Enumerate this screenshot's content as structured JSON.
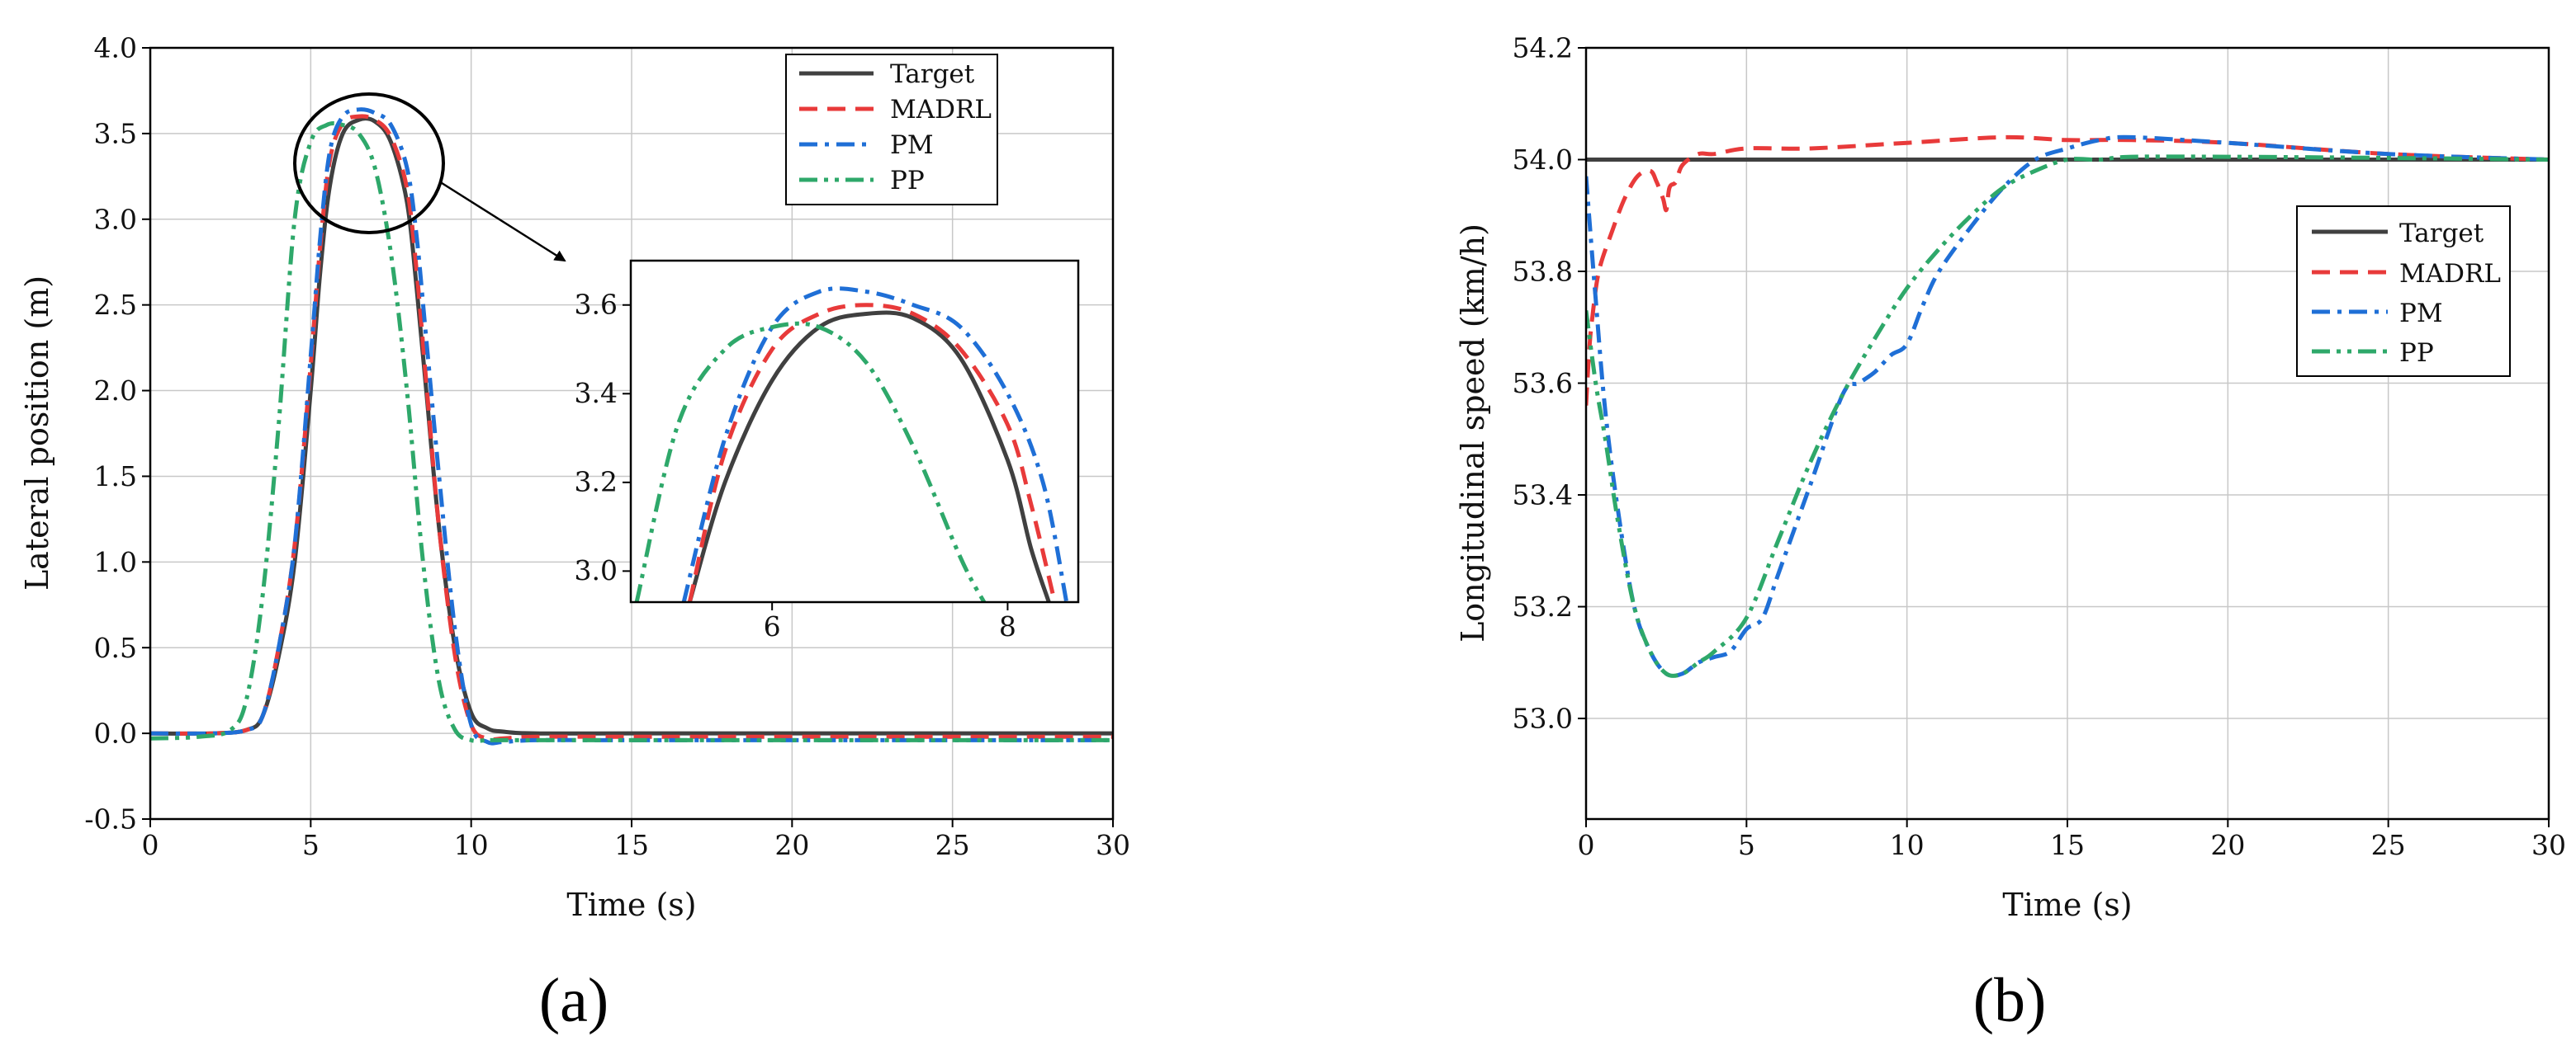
{
  "chart_data": [
    {
      "type": "line",
      "panel_label": "(a)",
      "xlabel": "Time (s)",
      "ylabel": "Lateral position (m)",
      "xlim": [
        0,
        30
      ],
      "ylim": [
        -0.5,
        4.0
      ],
      "xticks": [
        0,
        5,
        10,
        15,
        20,
        25,
        30
      ],
      "xtick_labels": [
        "0",
        "5",
        "10",
        "15",
        "20",
        "25",
        "30"
      ],
      "yticks": [
        -0.5,
        0.0,
        0.5,
        1.0,
        1.5,
        2.0,
        2.5,
        3.0,
        3.5,
        4.0
      ],
      "ytick_labels": [
        "-0.5",
        "0.0",
        "0.5",
        "1.0",
        "1.5",
        "2.0",
        "2.5",
        "3.0",
        "3.5",
        "4.0"
      ],
      "grid": true,
      "legend_position": "top-right",
      "series": [
        {
          "name": "Target",
          "color": "#404040",
          "dash": "solid",
          "x": [
            0,
            2,
            3,
            3.5,
            4,
            4.5,
            5,
            5.3,
            5.6,
            6,
            6.5,
            7,
            7.5,
            8,
            8.3,
            8.6,
            9,
            9.5,
            10,
            10.5,
            11,
            12,
            15,
            20,
            25,
            30
          ],
          "y": [
            0,
            0,
            0.02,
            0.1,
            0.45,
            1.0,
            2.0,
            2.7,
            3.2,
            3.5,
            3.58,
            3.57,
            3.45,
            3.1,
            2.6,
            2.0,
            1.2,
            0.5,
            0.12,
            0.03,
            0.01,
            0,
            0,
            0,
            0,
            0
          ]
        },
        {
          "name": "MADRL",
          "color": "#e83a3a",
          "dash": "dashed",
          "x": [
            0,
            2,
            3,
            3.5,
            4,
            4.5,
            5,
            5.3,
            5.6,
            6,
            6.5,
            7,
            7.5,
            8,
            8.3,
            8.6,
            9,
            9.5,
            10,
            10.5,
            11,
            12,
            15,
            20,
            25,
            30
          ],
          "y": [
            0,
            0,
            0.02,
            0.1,
            0.5,
            1.1,
            2.15,
            2.85,
            3.35,
            3.56,
            3.6,
            3.58,
            3.48,
            3.18,
            2.7,
            2.05,
            1.2,
            0.45,
            0.05,
            -0.03,
            -0.03,
            -0.02,
            -0.02,
            -0.02,
            -0.02,
            -0.02
          ]
        },
        {
          "name": "PM",
          "color": "#1f6fd6",
          "dash": "dashdot",
          "x": [
            0,
            2,
            3,
            3.5,
            4,
            4.5,
            5,
            5.3,
            5.6,
            6,
            6.5,
            7,
            7.5,
            8,
            8.3,
            8.6,
            9,
            9.5,
            10,
            10.5,
            11,
            12,
            15,
            20,
            25,
            30
          ],
          "y": [
            0,
            0,
            0.02,
            0.1,
            0.5,
            1.1,
            2.2,
            2.9,
            3.4,
            3.6,
            3.64,
            3.62,
            3.55,
            3.3,
            2.9,
            2.3,
            1.5,
            0.6,
            0.05,
            -0.05,
            -0.05,
            -0.04,
            -0.04,
            -0.04,
            -0.04,
            -0.04
          ]
        },
        {
          "name": "PP",
          "color": "#2ea86a",
          "dash": "dashdotdot",
          "x": [
            0,
            1.5,
            2.5,
            3,
            3.5,
            4,
            4.5,
            5,
            5.5,
            6,
            6.5,
            7,
            7.5,
            8,
            8.5,
            9,
            9.5,
            10,
            10.5,
            11,
            15,
            20,
            25,
            30
          ],
          "y": [
            -0.03,
            -0.02,
            0.02,
            0.2,
            0.8,
            1.8,
            3.0,
            3.45,
            3.55,
            3.55,
            3.5,
            3.3,
            2.8,
            2.0,
            1.0,
            0.3,
            0.02,
            -0.04,
            -0.04,
            -0.04,
            -0.04,
            -0.04,
            -0.04,
            -0.04
          ]
        }
      ],
      "inset": {
        "xlim": [
          4.8,
          8.6
        ],
        "ylim": [
          2.93,
          3.7
        ],
        "xticks": [
          6,
          8
        ],
        "xtick_labels": [
          "6",
          "8"
        ],
        "yticks": [
          3.0,
          3.2,
          3.4,
          3.6
        ],
        "ytick_labels": [
          "3.0",
          "3.2",
          "3.4",
          "3.6"
        ],
        "series": [
          {
            "name": "Target",
            "color": "#404040",
            "dash": "solid",
            "x": [
              5.3,
              5.6,
              6,
              6.4,
              6.8,
              7.2,
              7.6,
              8.0,
              8.2,
              8.35
            ],
            "y": [
              2.93,
              3.2,
              3.43,
              3.55,
              3.58,
              3.57,
              3.48,
              3.25,
              3.05,
              2.93
            ]
          },
          {
            "name": "MADRL",
            "color": "#e83a3a",
            "dash": "dashed",
            "x": [
              5.3,
              5.6,
              6,
              6.4,
              6.8,
              7.2,
              7.6,
              8.0,
              8.2,
              8.4
            ],
            "y": [
              2.93,
              3.27,
              3.5,
              3.58,
              3.6,
              3.58,
              3.5,
              3.33,
              3.15,
              2.93
            ]
          },
          {
            "name": "PM",
            "color": "#1f6fd6",
            "dash": "dashdot",
            "x": [
              5.25,
              5.6,
              6,
              6.4,
              6.8,
              7.2,
              7.6,
              8.0,
              8.3,
              8.5
            ],
            "y": [
              2.93,
              3.3,
              3.55,
              3.63,
              3.63,
              3.6,
              3.55,
              3.4,
              3.2,
              2.93
            ]
          },
          {
            "name": "PP",
            "color": "#2ea86a",
            "dash": "dashdotdot",
            "x": [
              4.85,
              5.2,
              5.6,
              6,
              6.4,
              6.8,
              7.2,
              7.6,
              7.8
            ],
            "y": [
              2.93,
              3.33,
              3.5,
              3.55,
              3.55,
              3.47,
              3.28,
              3.03,
              2.93
            ]
          }
        ]
      }
    },
    {
      "type": "line",
      "panel_label": "(b)",
      "xlabel": "Time (s)",
      "ylabel": "Longitudinal speed (km/h)",
      "xlim": [
        0,
        30
      ],
      "ylim": [
        52.82,
        54.2
      ],
      "xticks": [
        0,
        5,
        10,
        15,
        20,
        25,
        30
      ],
      "xtick_labels": [
        "0",
        "5",
        "10",
        "15",
        "20",
        "25",
        "30"
      ],
      "yticks": [
        53.0,
        53.2,
        53.4,
        53.6,
        53.8,
        54.0,
        54.2
      ],
      "ytick_labels": [
        "53.0",
        "53.2",
        "53.4",
        "53.6",
        "53.8",
        "54.0",
        "54.2"
      ],
      "grid": true,
      "legend_position": "right",
      "series": [
        {
          "name": "Target",
          "color": "#404040",
          "dash": "solid",
          "x": [
            0,
            30
          ],
          "y": [
            54.0,
            54.0
          ]
        },
        {
          "name": "MADRL",
          "color": "#e83a3a",
          "dash": "dashed",
          "x": [
            0,
            0.1,
            0.2,
            0.4,
            0.8,
            1.2,
            1.6,
            2.0,
            2.2,
            2.4,
            2.5,
            2.6,
            2.8,
            3.0,
            3.5,
            4,
            5,
            7,
            10,
            13,
            15,
            17,
            20,
            25,
            30
          ],
          "y": [
            53.56,
            53.66,
            53.72,
            53.8,
            53.87,
            53.93,
            53.97,
            53.98,
            53.96,
            53.93,
            53.91,
            53.95,
            53.96,
            53.99,
            54.01,
            54.01,
            54.02,
            54.02,
            54.03,
            54.04,
            54.035,
            54.035,
            54.03,
            54.01,
            54.0
          ]
        },
        {
          "name": "PM",
          "color": "#1f6fd6",
          "dash": "dashdot",
          "x": [
            0,
            0.3,
            0.6,
            1,
            1.5,
            2,
            2.5,
            3,
            3.5,
            4,
            4.5,
            5,
            5.5,
            6,
            7,
            8,
            8.5,
            9,
            9.5,
            10,
            10.5,
            11,
            12,
            13,
            14,
            15,
            16,
            17,
            20,
            25,
            30
          ],
          "y": [
            53.97,
            53.75,
            53.55,
            53.37,
            53.2,
            53.12,
            53.08,
            53.08,
            53.1,
            53.11,
            53.12,
            53.16,
            53.18,
            53.26,
            53.42,
            53.58,
            53.6,
            53.62,
            53.65,
            53.67,
            53.74,
            53.8,
            53.88,
            53.95,
            54.0,
            54.02,
            54.035,
            54.04,
            54.03,
            54.01,
            54.0
          ]
        },
        {
          "name": "PP",
          "color": "#2ea86a",
          "dash": "dashdotdot",
          "x": [
            0,
            0.3,
            0.6,
            1,
            1.5,
            2,
            2.5,
            3,
            3.5,
            4,
            5,
            6,
            7,
            8,
            9,
            10,
            11,
            12,
            13,
            14,
            15,
            16,
            17,
            20,
            25,
            30
          ],
          "y": [
            53.73,
            53.6,
            53.5,
            53.35,
            53.2,
            53.12,
            53.08,
            53.08,
            53.1,
            53.12,
            53.18,
            53.32,
            53.46,
            53.58,
            53.68,
            53.77,
            53.84,
            53.9,
            53.95,
            53.98,
            54.0,
            54.0,
            54.005,
            54.005,
            54.003,
            54.0
          ]
        }
      ]
    }
  ]
}
